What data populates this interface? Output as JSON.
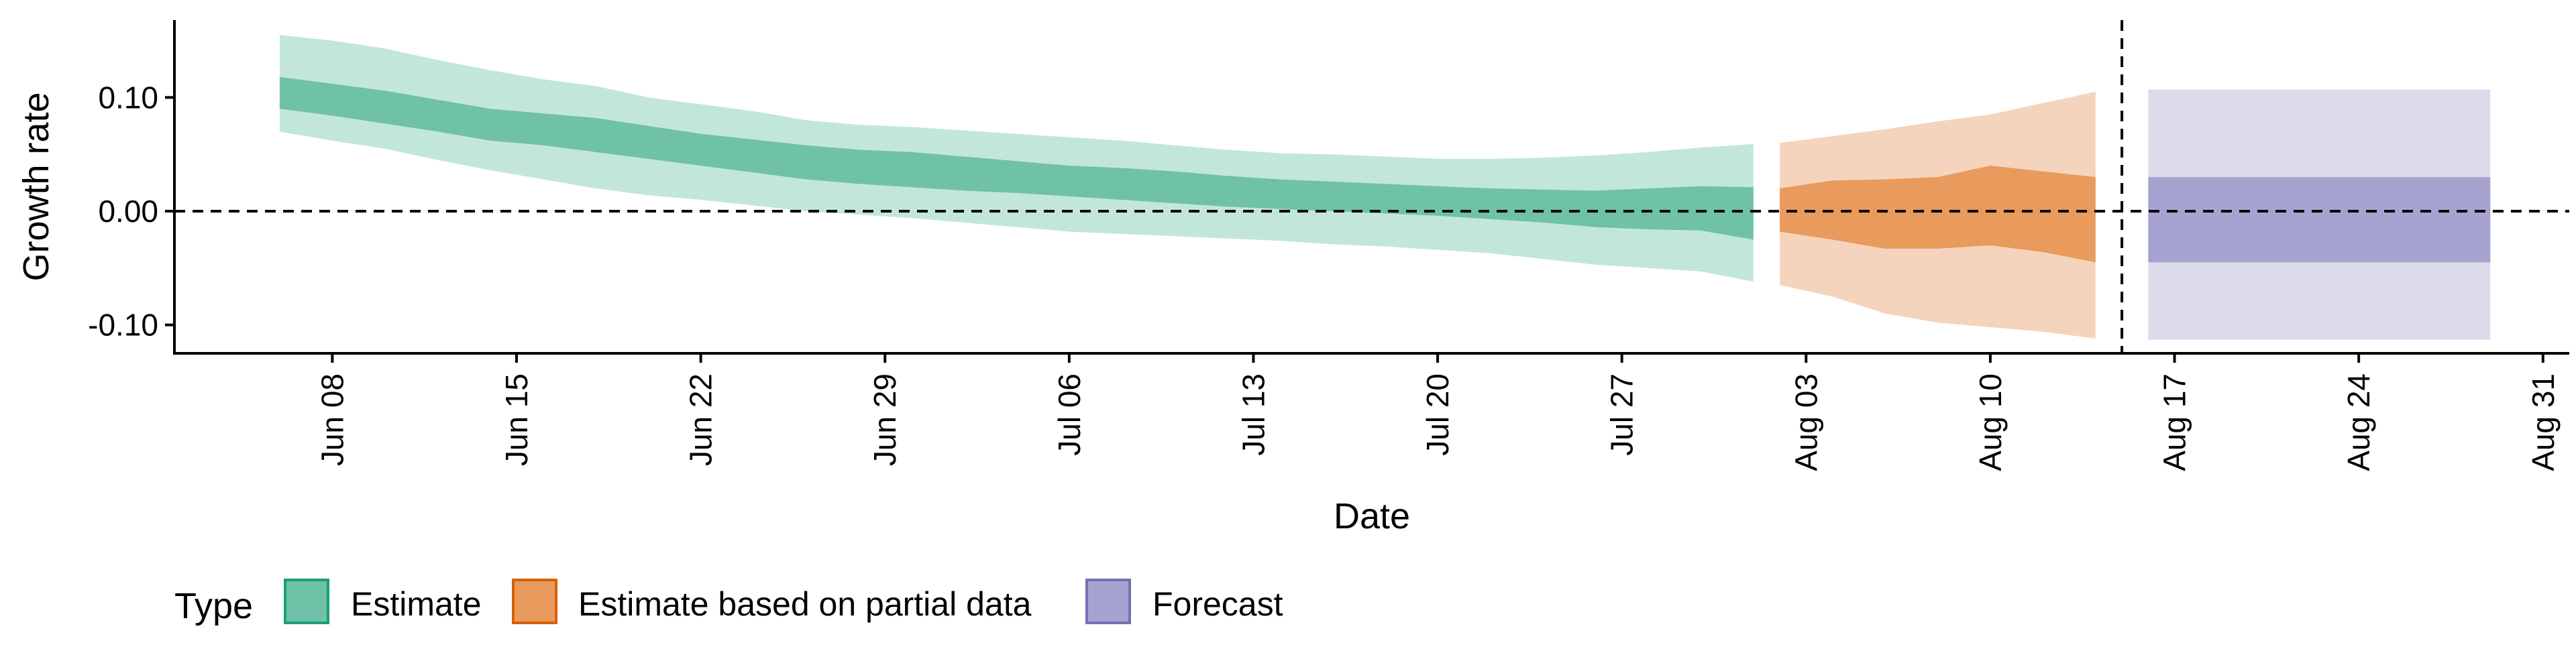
{
  "chart_data": {
    "type": "area",
    "xlabel": "Date",
    "ylabel": "Growth rate",
    "ylim": [
      -0.125,
      0.168
    ],
    "xlim": [
      "2020-06-02",
      "2020-09-01"
    ],
    "y_ticks": [
      {
        "value": 0.1,
        "label": "0.10"
      },
      {
        "value": 0.0,
        "label": "0.00"
      },
      {
        "value": -0.1,
        "label": "-0.10"
      }
    ],
    "x_ticks": [
      {
        "date": "2020-06-08",
        "label": "Jun 08"
      },
      {
        "date": "2020-06-15",
        "label": "Jun 15"
      },
      {
        "date": "2020-06-22",
        "label": "Jun 22"
      },
      {
        "date": "2020-06-29",
        "label": "Jun 29"
      },
      {
        "date": "2020-07-06",
        "label": "Jul 06"
      },
      {
        "date": "2020-07-13",
        "label": "Jul 13"
      },
      {
        "date": "2020-07-20",
        "label": "Jul 20"
      },
      {
        "date": "2020-07-27",
        "label": "Jul 27"
      },
      {
        "date": "2020-08-03",
        "label": "Aug 03"
      },
      {
        "date": "2020-08-10",
        "label": "Aug 10"
      },
      {
        "date": "2020-08-17",
        "label": "Aug 17"
      },
      {
        "date": "2020-08-24",
        "label": "Aug 24"
      },
      {
        "date": "2020-08-31",
        "label": "Aug 31"
      }
    ],
    "reference_lines": {
      "horizontal_y": 0.0,
      "vertical_date": "2020-08-15"
    },
    "legend": {
      "title": "Type",
      "placement": "bottom-left",
      "items": [
        {
          "label": "Estimate",
          "fill": "#6fc1a8",
          "stroke": "#1b9e77"
        },
        {
          "label": "Estimate based on partial data",
          "fill": "#e99a5d",
          "stroke": "#d95f02"
        },
        {
          "label": "Forecast",
          "fill": "#a7a3d1",
          "stroke": "#7570b3"
        }
      ]
    },
    "series": [
      {
        "type": "Estimate",
        "outer_color": "#c3e6db",
        "inner_color": "#6fc1a8",
        "points": [
          {
            "x": "2020-06-06",
            "lo90": 0.07,
            "lo50": 0.09,
            "hi50": 0.118,
            "hi90": 0.155
          },
          {
            "x": "2020-06-08",
            "lo90": 0.062,
            "lo50": 0.084,
            "hi50": 0.112,
            "hi90": 0.15
          },
          {
            "x": "2020-06-10",
            "lo90": 0.055,
            "lo50": 0.077,
            "hi50": 0.106,
            "hi90": 0.143
          },
          {
            "x": "2020-06-12",
            "lo90": 0.045,
            "lo50": 0.07,
            "hi50": 0.098,
            "hi90": 0.133
          },
          {
            "x": "2020-06-14",
            "lo90": 0.036,
            "lo50": 0.062,
            "hi50": 0.09,
            "hi90": 0.124
          },
          {
            "x": "2020-06-16",
            "lo90": 0.028,
            "lo50": 0.058,
            "hi50": 0.086,
            "hi90": 0.116
          },
          {
            "x": "2020-06-18",
            "lo90": 0.02,
            "lo50": 0.052,
            "hi50": 0.082,
            "hi90": 0.11
          },
          {
            "x": "2020-06-20",
            "lo90": 0.014,
            "lo50": 0.046,
            "hi50": 0.075,
            "hi90": 0.1
          },
          {
            "x": "2020-06-22",
            "lo90": 0.01,
            "lo50": 0.04,
            "hi50": 0.068,
            "hi90": 0.094
          },
          {
            "x": "2020-06-24",
            "lo90": 0.005,
            "lo50": 0.034,
            "hi50": 0.063,
            "hi90": 0.088
          },
          {
            "x": "2020-06-26",
            "lo90": 0.0,
            "lo50": 0.028,
            "hi50": 0.058,
            "hi90": 0.08
          },
          {
            "x": "2020-06-28",
            "lo90": -0.003,
            "lo50": 0.024,
            "hi50": 0.054,
            "hi90": 0.076
          },
          {
            "x": "2020-06-30",
            "lo90": -0.006,
            "lo50": 0.021,
            "hi50": 0.052,
            "hi90": 0.074
          },
          {
            "x": "2020-07-02",
            "lo90": -0.01,
            "lo50": 0.018,
            "hi50": 0.048,
            "hi90": 0.071
          },
          {
            "x": "2020-07-04",
            "lo90": -0.014,
            "lo50": 0.016,
            "hi50": 0.044,
            "hi90": 0.068
          },
          {
            "x": "2020-07-06",
            "lo90": -0.018,
            "lo50": 0.013,
            "hi50": 0.04,
            "hi90": 0.065
          },
          {
            "x": "2020-07-08",
            "lo90": -0.02,
            "lo50": 0.01,
            "hi50": 0.038,
            "hi90": 0.062
          },
          {
            "x": "2020-07-10",
            "lo90": -0.022,
            "lo50": 0.007,
            "hi50": 0.035,
            "hi90": 0.058
          },
          {
            "x": "2020-07-12",
            "lo90": -0.024,
            "lo50": 0.004,
            "hi50": 0.031,
            "hi90": 0.054
          },
          {
            "x": "2020-07-14",
            "lo90": -0.026,
            "lo50": 0.002,
            "hi50": 0.028,
            "hi90": 0.051
          },
          {
            "x": "2020-07-16",
            "lo90": -0.029,
            "lo50": 0.0,
            "hi50": 0.026,
            "hi90": 0.05
          },
          {
            "x": "2020-07-18",
            "lo90": -0.031,
            "lo50": -0.002,
            "hi50": 0.024,
            "hi90": 0.048
          },
          {
            "x": "2020-07-20",
            "lo90": -0.034,
            "lo50": -0.004,
            "hi50": 0.022,
            "hi90": 0.046
          },
          {
            "x": "2020-07-22",
            "lo90": -0.037,
            "lo50": -0.007,
            "hi50": 0.02,
            "hi90": 0.046
          },
          {
            "x": "2020-07-24",
            "lo90": -0.042,
            "lo50": -0.01,
            "hi50": 0.019,
            "hi90": 0.047
          },
          {
            "x": "2020-07-26",
            "lo90": -0.047,
            "lo50": -0.014,
            "hi50": 0.018,
            "hi90": 0.049
          },
          {
            "x": "2020-07-28",
            "lo90": -0.05,
            "lo50": -0.016,
            "hi50": 0.02,
            "hi90": 0.052
          },
          {
            "x": "2020-07-30",
            "lo90": -0.053,
            "lo50": -0.017,
            "hi50": 0.022,
            "hi90": 0.056
          },
          {
            "x": "2020-08-01",
            "lo90": -0.062,
            "lo50": -0.025,
            "hi50": 0.021,
            "hi90": 0.059
          }
        ]
      },
      {
        "type": "Estimate based on partial data",
        "outer_color": "#f4d4bc",
        "inner_color": "#e99a5d",
        "points": [
          {
            "x": "2020-08-02",
            "lo90": -0.065,
            "lo50": -0.018,
            "hi50": 0.02,
            "hi90": 0.06
          },
          {
            "x": "2020-08-04",
            "lo90": -0.075,
            "lo50": -0.025,
            "hi50": 0.027,
            "hi90": 0.066
          },
          {
            "x": "2020-08-06",
            "lo90": -0.09,
            "lo50": -0.033,
            "hi50": 0.028,
            "hi90": 0.072
          },
          {
            "x": "2020-08-08",
            "lo90": -0.098,
            "lo50": -0.033,
            "hi50": 0.03,
            "hi90": 0.079
          },
          {
            "x": "2020-08-10",
            "lo90": -0.102,
            "lo50": -0.03,
            "hi50": 0.04,
            "hi90": 0.085
          },
          {
            "x": "2020-08-12",
            "lo90": -0.106,
            "lo50": -0.036,
            "hi50": 0.035,
            "hi90": 0.095
          },
          {
            "x": "2020-08-14",
            "lo90": -0.112,
            "lo50": -0.045,
            "hi50": 0.03,
            "hi90": 0.105
          }
        ]
      },
      {
        "type": "Forecast",
        "outer_color": "#dcdbeb",
        "inner_color": "#a7a3d1",
        "points": [
          {
            "x": "2020-08-16",
            "lo90": -0.113,
            "lo50": -0.045,
            "hi50": 0.03,
            "hi90": 0.107
          },
          {
            "x": "2020-08-29",
            "lo90": -0.113,
            "lo50": -0.045,
            "hi50": 0.03,
            "hi90": 0.107
          }
        ]
      }
    ]
  }
}
